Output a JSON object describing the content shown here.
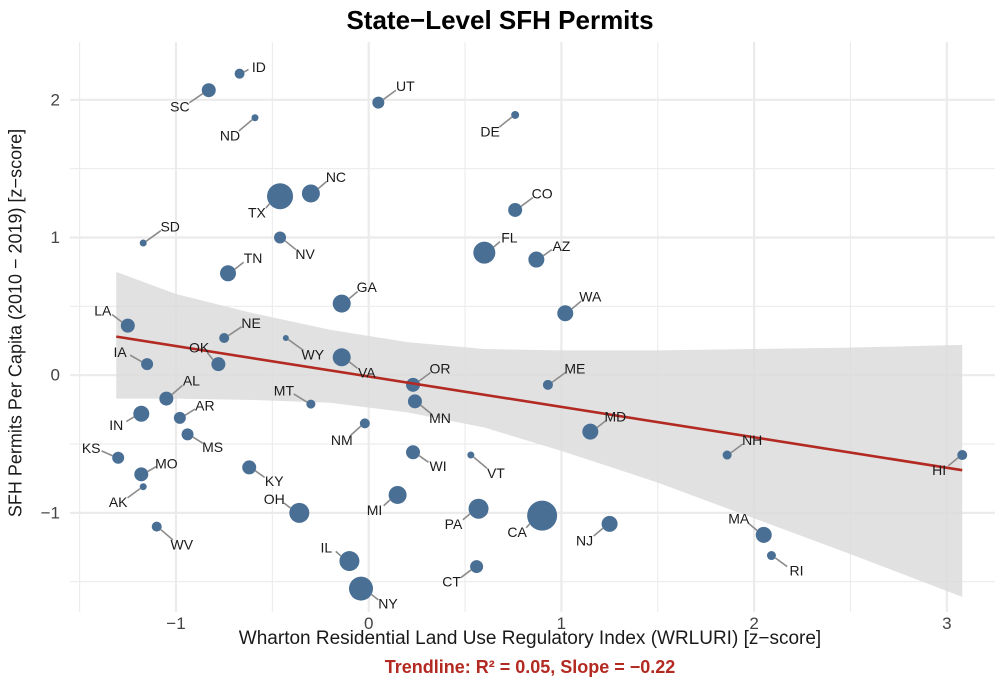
{
  "chart_data": {
    "type": "scatter",
    "title": "State−Level SFH Permits",
    "subtitle": "Trendline: R² = 0.05, Slope = −0.22",
    "xlabel": "Wharton Residential Land Use Regulatory Index (WRLURI) [z−score]",
    "ylabel": "SFH Permits Per Capita (2010 − 2019) [z−score]",
    "xlim": [
      -1.55,
      3.25
    ],
    "ylim": [
      -1.72,
      2.42
    ],
    "x_ticks": [
      -1,
      0,
      1,
      2,
      3
    ],
    "x_tick_labels": [
      "−1",
      "0",
      "1",
      "2",
      "3"
    ],
    "y_ticks": [
      -1,
      0,
      1,
      2
    ],
    "y_tick_labels": [
      "−1",
      "0",
      "1",
      "2"
    ],
    "grid": true,
    "point_color": "#4a6f95",
    "trend_color": "#b22a22",
    "band_color": "#dcdcdc",
    "trendline": {
      "x": [
        -1.31,
        3.08
      ],
      "y": [
        0.28,
        -0.69
      ],
      "band_upper": [
        [
          -1.31,
          0.75
        ],
        [
          -1.0,
          0.59
        ],
        [
          -0.6,
          0.45
        ],
        [
          -0.2,
          0.33
        ],
        [
          0.2,
          0.24
        ],
        [
          0.6,
          0.19
        ],
        [
          1.0,
          0.18
        ],
        [
          1.5,
          0.18
        ],
        [
          2.0,
          0.19
        ],
        [
          2.5,
          0.2
        ],
        [
          3.08,
          0.22
        ]
      ],
      "band_lower": [
        [
          -1.31,
          -0.17
        ],
        [
          -1.0,
          -0.17
        ],
        [
          -0.6,
          -0.18
        ],
        [
          -0.2,
          -0.2
        ],
        [
          0.2,
          -0.27
        ],
        [
          0.6,
          -0.38
        ],
        [
          1.0,
          -0.55
        ],
        [
          1.5,
          -0.78
        ],
        [
          2.0,
          -1.04
        ],
        [
          2.5,
          -1.3
        ],
        [
          3.08,
          -1.61
        ]
      ]
    },
    "points": [
      {
        "state": "ID",
        "x": -0.67,
        "y": 2.19,
        "size": 5,
        "lx": -0.57,
        "ly": 2.24
      },
      {
        "state": "SC",
        "x": -0.83,
        "y": 2.07,
        "size": 7,
        "lx": -0.98,
        "ly": 1.95
      },
      {
        "state": "UT",
        "x": 0.05,
        "y": 1.98,
        "size": 6,
        "lx": 0.19,
        "ly": 2.1
      },
      {
        "state": "ND",
        "x": -0.59,
        "y": 1.87,
        "size": 3.5,
        "lx": -0.72,
        "ly": 1.74
      },
      {
        "state": "DE",
        "x": 0.76,
        "y": 1.89,
        "size": 4,
        "lx": 0.63,
        "ly": 1.77
      },
      {
        "state": "TX",
        "x": -0.46,
        "y": 1.3,
        "size": 13,
        "lx": -0.58,
        "ly": 1.18
      },
      {
        "state": "NC",
        "x": -0.3,
        "y": 1.32,
        "size": 9,
        "lx": -0.17,
        "ly": 1.44
      },
      {
        "state": "CO",
        "x": 0.76,
        "y": 1.2,
        "size": 7,
        "lx": 0.9,
        "ly": 1.32
      },
      {
        "state": "SD",
        "x": -1.17,
        "y": 0.96,
        "size": 3.5,
        "lx": -1.03,
        "ly": 1.08
      },
      {
        "state": "NV",
        "x": -0.46,
        "y": 1.0,
        "size": 6,
        "lx": -0.33,
        "ly": 0.88
      },
      {
        "state": "FL",
        "x": 0.6,
        "y": 0.89,
        "size": 11,
        "lx": 0.73,
        "ly": 1.0
      },
      {
        "state": "AZ",
        "x": 0.87,
        "y": 0.84,
        "size": 8,
        "lx": 1.0,
        "ly": 0.94
      },
      {
        "state": "TN",
        "x": -0.73,
        "y": 0.74,
        "size": 8,
        "lx": -0.6,
        "ly": 0.85
      },
      {
        "state": "GA",
        "x": -0.14,
        "y": 0.52,
        "size": 9,
        "lx": -0.01,
        "ly": 0.64
      },
      {
        "state": "WA",
        "x": 1.02,
        "y": 0.45,
        "size": 8,
        "lx": 1.15,
        "ly": 0.57
      },
      {
        "state": "LA",
        "x": -1.25,
        "y": 0.36,
        "size": 7,
        "lx": -1.38,
        "ly": 0.47
      },
      {
        "state": "NE",
        "x": -0.75,
        "y": 0.27,
        "size": 5,
        "lx": -0.61,
        "ly": 0.38
      },
      {
        "state": "OK",
        "x": -0.78,
        "y": 0.08,
        "size": 7,
        "lx": -0.88,
        "ly": 0.2
      },
      {
        "state": "WY",
        "x": -0.43,
        "y": 0.27,
        "size": 3,
        "lx": -0.29,
        "ly": 0.15
      },
      {
        "state": "VA",
        "x": -0.14,
        "y": 0.13,
        "size": 9,
        "lx": -0.01,
        "ly": 0.02
      },
      {
        "state": "IA",
        "x": -1.15,
        "y": 0.08,
        "size": 6,
        "lx": -1.29,
        "ly": 0.17
      },
      {
        "state": "ME",
        "x": 0.93,
        "y": -0.07,
        "size": 5,
        "lx": 1.07,
        "ly": 0.05
      },
      {
        "state": "OR",
        "x": 0.23,
        "y": -0.07,
        "size": 7,
        "lx": 0.37,
        "ly": 0.05
      },
      {
        "state": "AL",
        "x": -1.05,
        "y": -0.17,
        "size": 7,
        "lx": -0.92,
        "ly": -0.04
      },
      {
        "state": "MT",
        "x": -0.3,
        "y": -0.21,
        "size": 4.5,
        "lx": -0.44,
        "ly": -0.11
      },
      {
        "state": "MN",
        "x": 0.24,
        "y": -0.19,
        "size": 7,
        "lx": 0.37,
        "ly": -0.31
      },
      {
        "state": "IN",
        "x": -1.18,
        "y": -0.28,
        "size": 8,
        "lx": -1.31,
        "ly": -0.36
      },
      {
        "state": "AR",
        "x": -0.98,
        "y": -0.31,
        "size": 6,
        "lx": -0.85,
        "ly": -0.22
      },
      {
        "state": "MD",
        "x": 1.15,
        "y": -0.41,
        "size": 8,
        "lx": 1.28,
        "ly": -0.3
      },
      {
        "state": "NM",
        "x": -0.02,
        "y": -0.35,
        "size": 5,
        "lx": -0.14,
        "ly": -0.47
      },
      {
        "state": "MS",
        "x": -0.94,
        "y": -0.43,
        "size": 6,
        "lx": -0.81,
        "ly": -0.52
      },
      {
        "state": "NH",
        "x": 1.86,
        "y": -0.58,
        "size": 4.5,
        "lx": 1.99,
        "ly": -0.47
      },
      {
        "state": "KS",
        "x": -1.3,
        "y": -0.6,
        "size": 6,
        "lx": -1.44,
        "ly": -0.53
      },
      {
        "state": "WI",
        "x": 0.23,
        "y": -0.56,
        "size": 7,
        "lx": 0.36,
        "ly": -0.66
      },
      {
        "state": "VT",
        "x": 0.53,
        "y": -0.58,
        "size": 3.5,
        "lx": 0.66,
        "ly": -0.71
      },
      {
        "state": "HI",
        "x": 3.08,
        "y": -0.58,
        "size": 5,
        "lx": 2.96,
        "ly": -0.69
      },
      {
        "state": "MO",
        "x": -1.18,
        "y": -0.72,
        "size": 7,
        "lx": -1.05,
        "ly": -0.64
      },
      {
        "state": "KY",
        "x": -0.62,
        "y": -0.67,
        "size": 7,
        "lx": -0.49,
        "ly": -0.77
      },
      {
        "state": "AK",
        "x": -1.17,
        "y": -0.81,
        "size": 3.5,
        "lx": -1.3,
        "ly": -0.92
      },
      {
        "state": "MI",
        "x": 0.15,
        "y": -0.87,
        "size": 9,
        "lx": 0.03,
        "ly": -0.98
      },
      {
        "state": "OH",
        "x": -0.36,
        "y": -1.0,
        "size": 10,
        "lx": -0.49,
        "ly": -0.9
      },
      {
        "state": "PA",
        "x": 0.57,
        "y": -0.97,
        "size": 10,
        "lx": 0.44,
        "ly": -1.08
      },
      {
        "state": "CA",
        "x": 0.9,
        "y": -1.02,
        "size": 15,
        "lx": 0.77,
        "ly": -1.14
      },
      {
        "state": "NJ",
        "x": 1.25,
        "y": -1.08,
        "size": 8,
        "lx": 1.12,
        "ly": -1.2
      },
      {
        "state": "MA",
        "x": 2.05,
        "y": -1.16,
        "size": 8,
        "lx": 1.92,
        "ly": -1.04
      },
      {
        "state": "WV",
        "x": -1.1,
        "y": -1.1,
        "size": 5,
        "lx": -0.97,
        "ly": -1.23
      },
      {
        "state": "RI",
        "x": 2.09,
        "y": -1.31,
        "size": 4.5,
        "lx": 2.22,
        "ly": -1.42
      },
      {
        "state": "IL",
        "x": -0.1,
        "y": -1.35,
        "size": 10,
        "lx": -0.22,
        "ly": -1.25
      },
      {
        "state": "CT",
        "x": 0.56,
        "y": -1.39,
        "size": 6.5,
        "lx": 0.43,
        "ly": -1.5
      },
      {
        "state": "NY",
        "x": -0.04,
        "y": -1.55,
        "size": 12,
        "lx": 0.1,
        "ly": -1.66
      }
    ]
  }
}
